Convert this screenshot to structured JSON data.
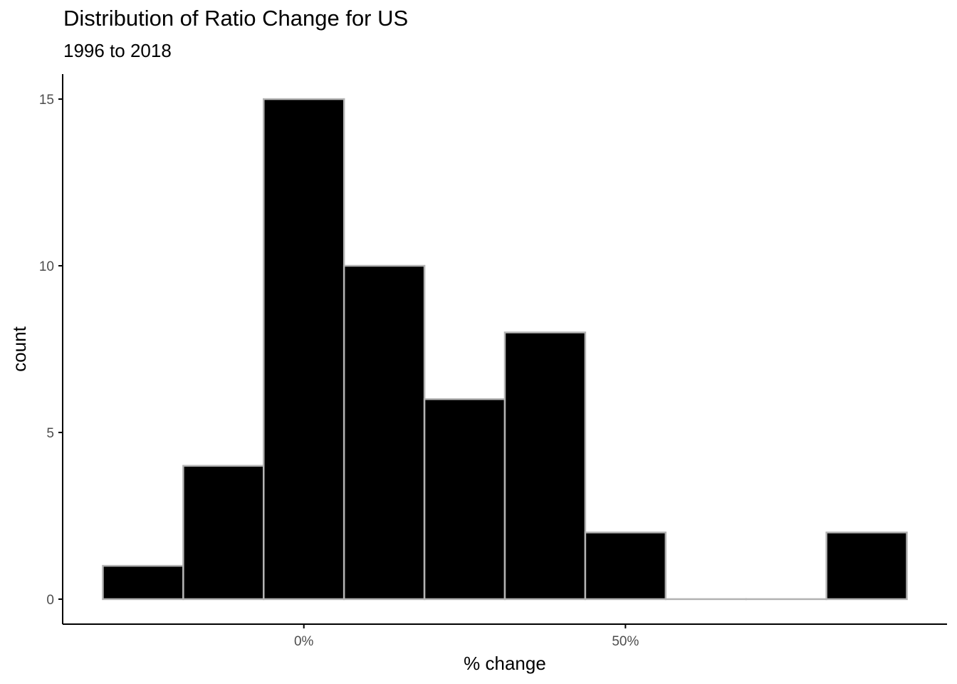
{
  "chart_data": {
    "type": "bar",
    "title": "Distribution of Ratio Change for US",
    "subtitle": "1996 to 2018",
    "xlabel": "% change",
    "ylabel": "count",
    "bins": [
      {
        "x0": -0.3125,
        "x1": -0.1875,
        "count": 1
      },
      {
        "x0": -0.1875,
        "x1": -0.0625,
        "count": 4
      },
      {
        "x0": -0.0625,
        "x1": 0.0625,
        "count": 15
      },
      {
        "x0": 0.0625,
        "x1": 0.1875,
        "count": 10
      },
      {
        "x0": 0.1875,
        "x1": 0.3125,
        "count": 6
      },
      {
        "x0": 0.3125,
        "x1": 0.4375,
        "count": 8
      },
      {
        "x0": 0.4375,
        "x1": 0.5625,
        "count": 2
      },
      {
        "x0": 0.5625,
        "x1": 0.6875,
        "count": 0
      },
      {
        "x0": 0.6875,
        "x1": 0.8125,
        "count": 0
      },
      {
        "x0": 0.8125,
        "x1": 0.9375,
        "count": 2
      }
    ],
    "x_ticks": [
      {
        "value": 0,
        "label": "0%"
      },
      {
        "value": 0.5,
        "label": "50%"
      }
    ],
    "y_ticks": [
      {
        "value": 0,
        "label": "0"
      },
      {
        "value": 5,
        "label": "5"
      },
      {
        "value": 10,
        "label": "10"
      },
      {
        "value": 15,
        "label": "15"
      }
    ],
    "xlim": [
      -0.375,
      1.0
    ],
    "ylim": [
      -0.75,
      15.75
    ],
    "grid": false,
    "bar_fill": "#000000",
    "bar_outline": "#b3b3b3"
  }
}
